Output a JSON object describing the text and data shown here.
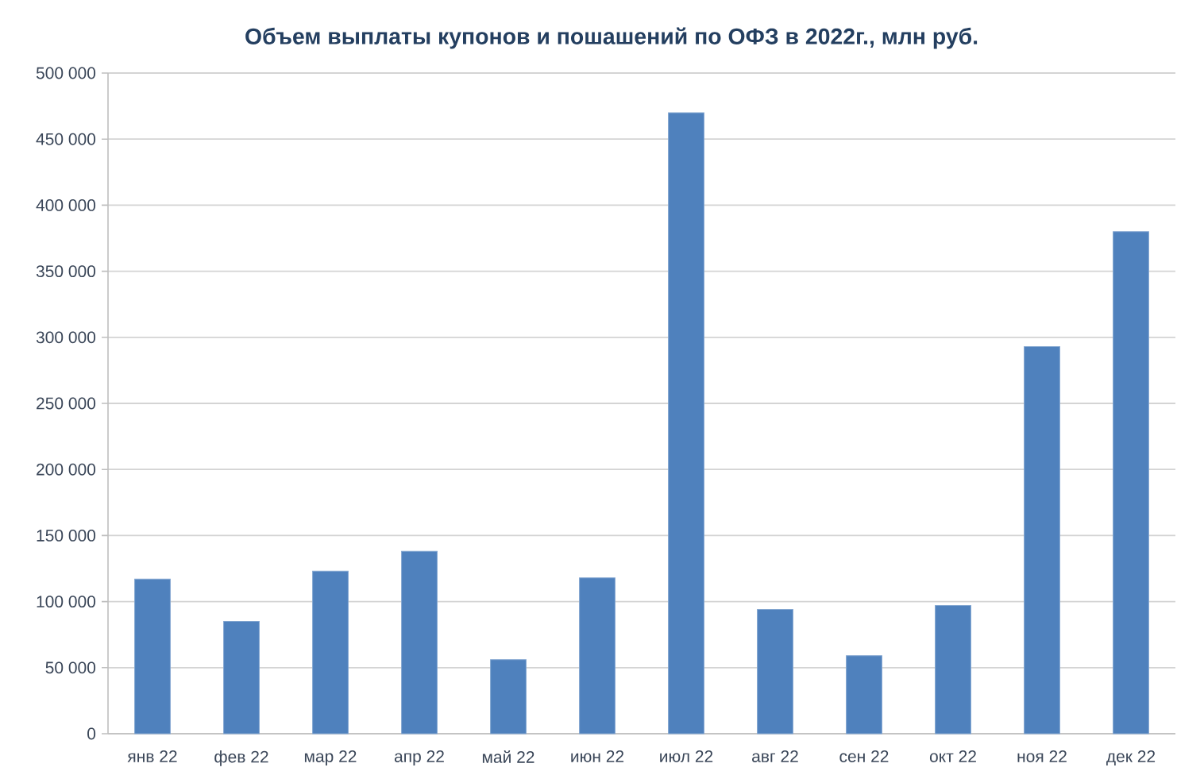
{
  "chart_data": {
    "type": "bar",
    "title": "Объем выплаты купонов и пошашений по ОФЗ в 2022г., млн руб.",
    "categories": [
      "янв 22",
      "фев 22",
      "мар 22",
      "апр 22",
      "май 22",
      "июн 22",
      "июл 22",
      "авг 22",
      "сен 22",
      "окт 22",
      "ноя 22",
      "дек 22"
    ],
    "values": [
      117000,
      85000,
      123000,
      138000,
      56000,
      118000,
      470000,
      94000,
      59000,
      97000,
      293000,
      380000
    ],
    "color": "#4f81bd",
    "ylim": [
      0,
      500000
    ],
    "yticks": [
      0,
      {
        "value": 50000,
        "label": "50 000"
      },
      {
        "value": 100000,
        "label": "100 000"
      },
      {
        "value": 150000,
        "label": "150 000"
      },
      {
        "value": 200000,
        "label": "200 000"
      },
      {
        "value": 250000,
        "label": "250 000"
      },
      {
        "value": 300000,
        "label": "300 000"
      },
      {
        "value": 350000,
        "label": "350 000"
      },
      {
        "value": 400000,
        "label": "400 000"
      },
      {
        "value": 450000,
        "label": "450 000"
      },
      {
        "value": 500000,
        "label": "500 000"
      }
    ],
    "grid": "y"
  }
}
